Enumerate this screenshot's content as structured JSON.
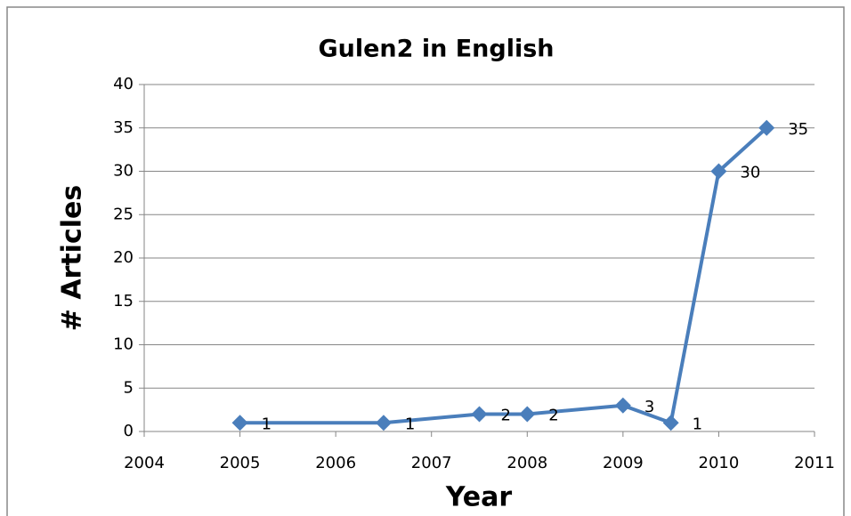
{
  "chart_data": {
    "type": "line",
    "title": "Gulen2 in English",
    "x_label": "Year",
    "y_label": "# Articles",
    "x": [
      2005,
      2006.5,
      2007.5,
      2008,
      2009,
      2009.5,
      2010,
      2010.5
    ],
    "values": [
      1,
      1,
      2,
      2,
      3,
      1,
      30,
      35
    ],
    "color": "#4a7ebb",
    "xlim": [
      2004,
      2011
    ],
    "xticks": [
      2004,
      2005,
      2006,
      2007,
      2008,
      2009,
      2010,
      2011
    ],
    "ylim": [
      0,
      40
    ],
    "yticks": [
      0,
      5,
      10,
      15,
      20,
      25,
      30,
      35,
      40
    ],
    "grid": true
  }
}
